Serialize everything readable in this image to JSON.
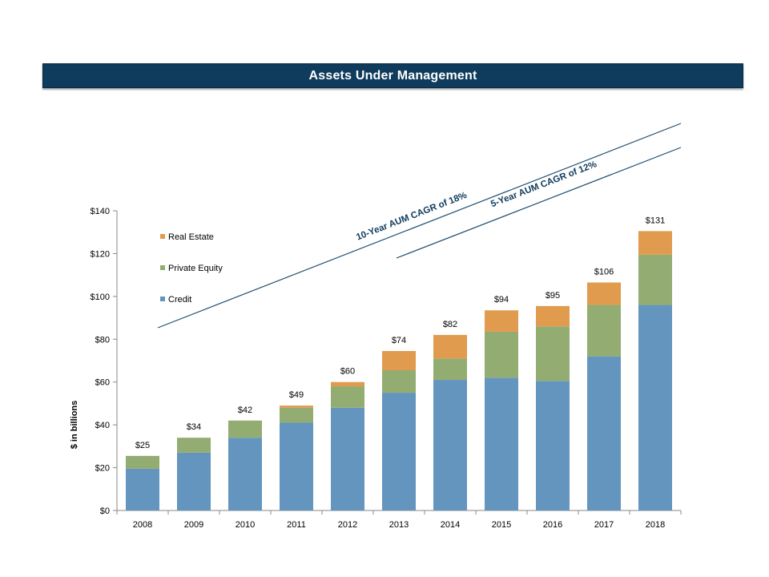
{
  "header": {
    "title": "Assets Under Management"
  },
  "chart_data": {
    "type": "bar",
    "stacked": true,
    "title": "Assets Under Management",
    "ylabel": "$ in billions",
    "xlabel": "",
    "ylim": [
      0,
      140
    ],
    "yticks": [
      0,
      20,
      40,
      60,
      80,
      100,
      120,
      140
    ],
    "ytick_labels": [
      "$0",
      "$20",
      "$40",
      "$60",
      "$80",
      "$100",
      "$120",
      "$140"
    ],
    "categories": [
      "2008",
      "2009",
      "2010",
      "2011",
      "2012",
      "2013",
      "2014",
      "2015",
      "2016",
      "2017",
      "2018"
    ],
    "series": [
      {
        "name": "Credit",
        "color": "#6495be",
        "values": [
          19.5,
          27,
          34,
          41,
          48,
          55,
          61,
          62,
          60.5,
          72,
          96
        ]
      },
      {
        "name": "Private Equity",
        "color": "#93ac72",
        "values": [
          6,
          7,
          8,
          7,
          10,
          10.5,
          10,
          21.5,
          25.5,
          24,
          23.5
        ]
      },
      {
        "name": "Real Estate",
        "color": "#e09b4f",
        "values": [
          0,
          0,
          0,
          1,
          2,
          9,
          11,
          10,
          9.5,
          10.5,
          11
        ]
      }
    ],
    "total_labels": [
      "$25",
      "$34",
      "$42",
      "$49",
      "$60",
      "$74",
      "$82",
      "$94",
      "$95",
      "$106",
      "$131"
    ],
    "legend": {
      "placement": "top-left",
      "entries": [
        "Real Estate",
        "Private Equity",
        "Credit"
      ]
    },
    "annotations": [
      {
        "text": "10-Year AUM CAGR of 18%",
        "from": "2008",
        "to": "2018"
      },
      {
        "text": "5-Year AUM CAGR of 12%",
        "from": "2013",
        "to": "2018"
      }
    ],
    "grid": false
  }
}
